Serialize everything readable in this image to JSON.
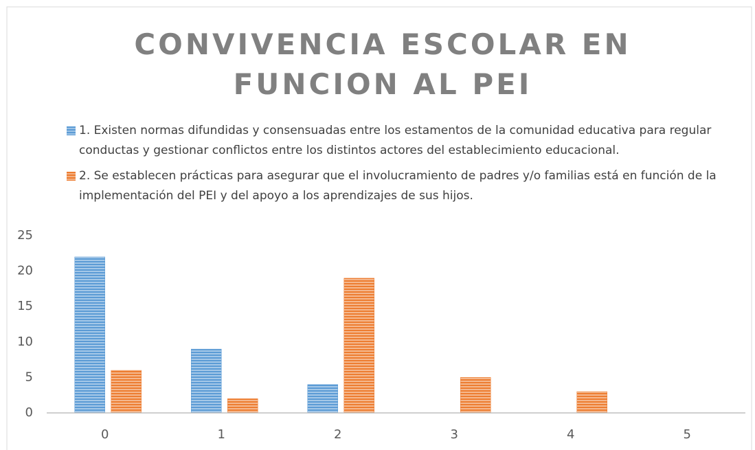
{
  "chart_data": {
    "type": "bar",
    "title": "CONVIVENCIA ESCOLAR EN FUNCION AL PEI",
    "categories": [
      "0",
      "1",
      "2",
      "3",
      "4",
      "5"
    ],
    "series": [
      {
        "name": "1. Existen normas difundidas y consensuadas entre los estamentos de la comunidad educativa para regular conductas y gestionar conflictos entre los distintos actores del establecimiento educacional.",
        "color": "#5b9bd5",
        "values": [
          22,
          9,
          4,
          0,
          0,
          0
        ]
      },
      {
        "name": "2. Se establecen prácticas para asegurar que el involucramiento de padres y/o familias está en función de la implementación del PEI y del apoyo a los aprendizajes de sus hijos.",
        "color": "#ed7d31",
        "values": [
          6,
          2,
          19,
          5,
          3,
          0
        ]
      }
    ],
    "ylim": [
      0,
      25
    ],
    "yticks": [
      0,
      5,
      10,
      15,
      20,
      25
    ],
    "grid": false,
    "legend": "top"
  }
}
